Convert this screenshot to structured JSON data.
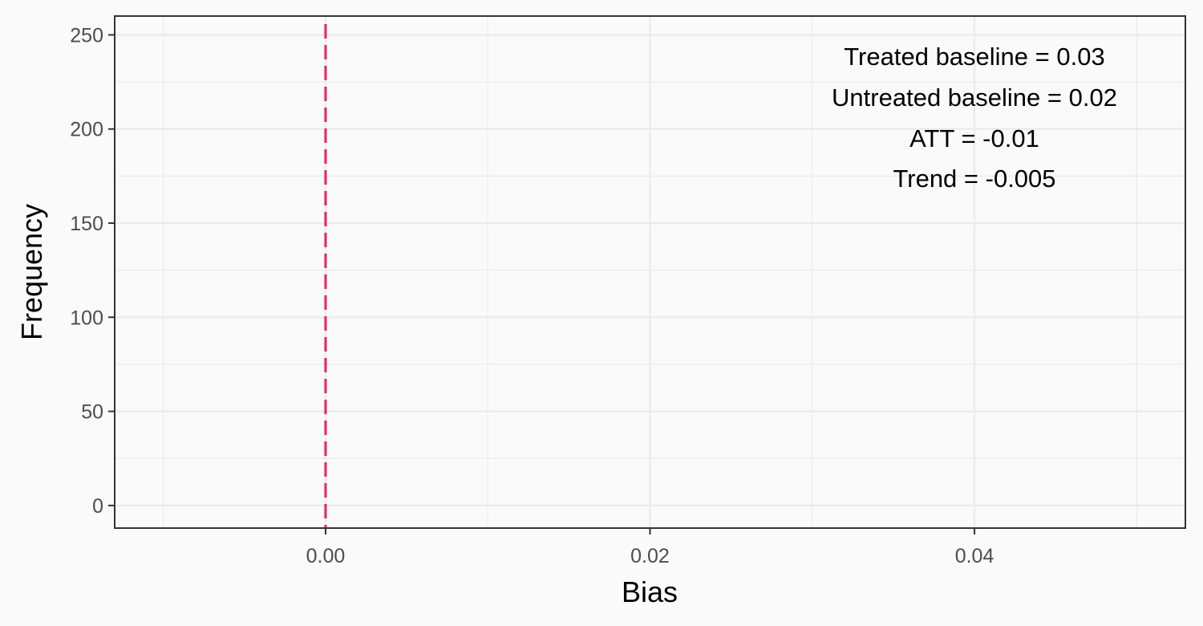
{
  "chart_data": {
    "type": "histogram",
    "title": "",
    "xlabel": "Bias",
    "ylabel": "Frequency",
    "xlim": [
      -0.013,
      0.053
    ],
    "ylim": [
      -12,
      260
    ],
    "x_ticks": [
      0.0,
      0.02,
      0.04
    ],
    "x_tick_labels": [
      "0.00",
      "0.02",
      "0.04"
    ],
    "x_minor_ticks": [
      -0.01,
      0.01,
      0.03,
      0.05
    ],
    "y_ticks": [
      0,
      50,
      100,
      150,
      200,
      250
    ],
    "y_tick_labels": [
      "0",
      "50",
      "100",
      "150",
      "200",
      "250"
    ],
    "y_minor_ticks": [
      25,
      75,
      125,
      175,
      225
    ],
    "grid": true,
    "bars": [],
    "reference_line": {
      "x": 0.0,
      "style": "dashed",
      "color": "#E8235F"
    },
    "annotations": [
      "Treated baseline = 0.03",
      "Untreated baseline = 0.02",
      "ATT = -0.01",
      "Trend = -0.005"
    ],
    "colors": {
      "background": "#FAFAFA",
      "panel": "#FAFAFA",
      "grid": "#EBEBEB",
      "border": "#333333",
      "reference": "#E8235F"
    }
  }
}
